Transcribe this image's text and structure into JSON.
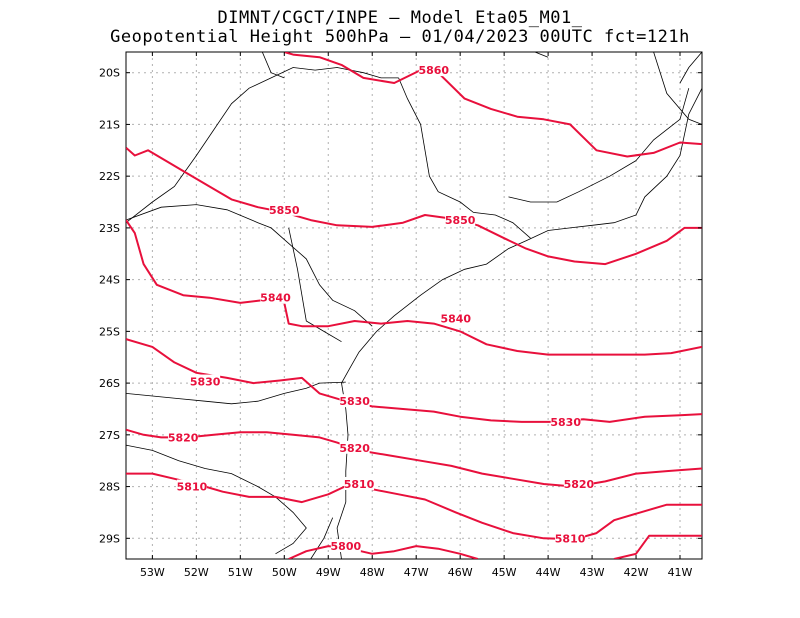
{
  "title": {
    "line1": "DIMNT/CGCT/INPE –  Model Eta05_M01_",
    "line2": "Geopotential Height 500hPa –  01/04/2023 00UTC fct=121h"
  },
  "map": {
    "lon_range": [
      -53.6,
      -40.5
    ],
    "lat_range": [
      -29.4,
      -19.6
    ],
    "lat_ticks": [
      {
        "value": -20,
        "label": "20S"
      },
      {
        "value": -21,
        "label": "21S"
      },
      {
        "value": -22,
        "label": "22S"
      },
      {
        "value": -23,
        "label": "23S"
      },
      {
        "value": -24,
        "label": "24S"
      },
      {
        "value": -25,
        "label": "25S"
      },
      {
        "value": -26,
        "label": "26S"
      },
      {
        "value": -27,
        "label": "27S"
      },
      {
        "value": -28,
        "label": "28S"
      },
      {
        "value": -29,
        "label": "29S"
      }
    ],
    "lon_ticks": [
      {
        "value": -53,
        "label": "53W"
      },
      {
        "value": -52,
        "label": "52W"
      },
      {
        "value": -51,
        "label": "51W"
      },
      {
        "value": -50,
        "label": "50W"
      },
      {
        "value": -49,
        "label": "49W"
      },
      {
        "value": -48,
        "label": "48W"
      },
      {
        "value": -47,
        "label": "47W"
      },
      {
        "value": -46,
        "label": "46W"
      },
      {
        "value": -45,
        "label": "45W"
      },
      {
        "value": -44,
        "label": "44W"
      },
      {
        "value": -43,
        "label": "43W"
      },
      {
        "value": -42,
        "label": "42W"
      },
      {
        "value": -41,
        "label": "41W"
      }
    ],
    "colors": {
      "contour": "#e8103c",
      "border": "#000000",
      "grid": "#b0b0b0"
    },
    "contours": [
      {
        "level": 5860,
        "label": "5860",
        "label_at": [
          -46.6,
          -19.95
        ],
        "points": [
          [
            -50.0,
            -19.6
          ],
          [
            -49.8,
            -19.65
          ],
          [
            -49.2,
            -19.7
          ],
          [
            -48.7,
            -19.85
          ],
          [
            -48.2,
            -20.1
          ],
          [
            -47.5,
            -20.2
          ],
          [
            -46.9,
            -19.95
          ],
          [
            -46.5,
            -20.0
          ],
          [
            -45.9,
            -20.5
          ],
          [
            -45.3,
            -20.7
          ],
          [
            -44.7,
            -20.85
          ],
          [
            -44.1,
            -20.9
          ],
          [
            -43.5,
            -21.0
          ],
          [
            -42.9,
            -21.5
          ],
          [
            -42.2,
            -21.62
          ],
          [
            -41.6,
            -21.55
          ],
          [
            -41.0,
            -21.35
          ],
          [
            -40.5,
            -21.38
          ]
        ]
      },
      {
        "level": 5850,
        "label": "5850",
        "label_at": [
          -50.0,
          -22.65
        ],
        "points": [
          [
            -53.6,
            -21.45
          ],
          [
            -53.4,
            -21.6
          ],
          [
            -53.1,
            -21.5
          ],
          [
            -52.7,
            -21.7
          ],
          [
            -52.2,
            -21.95
          ],
          [
            -51.7,
            -22.2
          ],
          [
            -51.2,
            -22.45
          ],
          [
            -50.6,
            -22.6
          ],
          [
            -50.0,
            -22.7
          ],
          [
            -49.4,
            -22.85
          ],
          [
            -48.8,
            -22.95
          ],
          [
            -48.0,
            -22.98
          ],
          [
            -47.3,
            -22.9
          ],
          [
            -46.8,
            -22.75
          ],
          [
            -46.2,
            -22.82
          ],
          [
            -45.6,
            -22.95
          ],
          [
            -45.0,
            -23.2
          ],
          [
            -44.5,
            -23.4
          ],
          [
            -44.0,
            -23.55
          ],
          [
            -43.4,
            -23.65
          ],
          [
            -42.7,
            -23.7
          ],
          [
            -42.0,
            -23.5
          ],
          [
            -41.3,
            -23.25
          ],
          [
            -40.9,
            -23.0
          ],
          [
            -40.5,
            -23.0
          ]
        ]
      },
      {
        "level": 5840,
        "label": "5840",
        "label_at": [
          -50.2,
          -24.35
        ],
        "points": [
          [
            -53.6,
            -22.85
          ],
          [
            -53.4,
            -23.1
          ],
          [
            -53.2,
            -23.7
          ],
          [
            -52.9,
            -24.1
          ],
          [
            -52.3,
            -24.3
          ],
          [
            -51.7,
            -24.35
          ],
          [
            -51.0,
            -24.45
          ],
          [
            -50.5,
            -24.4
          ],
          [
            -50.0,
            -24.45
          ],
          [
            -49.9,
            -24.85
          ],
          [
            -49.6,
            -24.9
          ],
          [
            -49.0,
            -24.9
          ],
          [
            -48.4,
            -24.8
          ],
          [
            -47.8,
            -24.85
          ],
          [
            -47.2,
            -24.8
          ],
          [
            -46.6,
            -24.85
          ],
          [
            -46.0,
            -25.0
          ],
          [
            -45.4,
            -25.25
          ],
          [
            -44.7,
            -25.38
          ],
          [
            -44.0,
            -25.45
          ],
          [
            -43.3,
            -25.45
          ],
          [
            -42.5,
            -25.45
          ],
          [
            -41.8,
            -25.45
          ],
          [
            -41.2,
            -25.42
          ],
          [
            -40.5,
            -25.3
          ]
        ]
      },
      {
        "level": 5830,
        "label": "5830",
        "label_at": [
          -51.8,
          -25.97
        ],
        "points": [
          [
            -53.6,
            -25.15
          ],
          [
            -53.0,
            -25.3
          ],
          [
            -52.5,
            -25.6
          ],
          [
            -52.0,
            -25.8
          ],
          [
            -51.3,
            -25.9
          ],
          [
            -50.7,
            -26.0
          ],
          [
            -50.1,
            -25.95
          ],
          [
            -49.6,
            -25.9
          ],
          [
            -49.2,
            -26.2
          ],
          [
            -48.6,
            -26.35
          ],
          [
            -48.0,
            -26.45
          ],
          [
            -47.3,
            -26.5
          ],
          [
            -46.6,
            -26.55
          ],
          [
            -46.0,
            -26.65
          ],
          [
            -45.3,
            -26.72
          ],
          [
            -44.6,
            -26.75
          ],
          [
            -43.9,
            -26.75
          ],
          [
            -43.2,
            -26.7
          ],
          [
            -42.6,
            -26.75
          ],
          [
            -41.8,
            -26.65
          ],
          [
            -41.0,
            -26.62
          ],
          [
            -40.5,
            -26.6
          ]
        ]
      },
      {
        "level": 5820,
        "label": "5820",
        "label_at": [
          -52.3,
          -27.05
        ],
        "points": [
          [
            -53.6,
            -26.9
          ],
          [
            -53.2,
            -27.0
          ],
          [
            -52.8,
            -27.05
          ],
          [
            -52.2,
            -27.05
          ],
          [
            -51.6,
            -27.0
          ],
          [
            -51.0,
            -26.95
          ],
          [
            -50.4,
            -26.95
          ],
          [
            -49.8,
            -27.0
          ],
          [
            -49.2,
            -27.05
          ],
          [
            -48.8,
            -27.15
          ],
          [
            -48.3,
            -27.3
          ],
          [
            -47.6,
            -27.4
          ],
          [
            -46.9,
            -27.5
          ],
          [
            -46.2,
            -27.6
          ],
          [
            -45.5,
            -27.75
          ],
          [
            -44.8,
            -27.85
          ],
          [
            -44.1,
            -27.95
          ],
          [
            -43.4,
            -28.0
          ],
          [
            -42.7,
            -27.9
          ],
          [
            -42.0,
            -27.75
          ],
          [
            -41.3,
            -27.7
          ],
          [
            -40.5,
            -27.65
          ]
        ]
      },
      {
        "level": 5810,
        "label": "5810",
        "label_at": [
          -52.1,
          -28.0
        ],
        "points": [
          [
            -53.6,
            -27.75
          ],
          [
            -53.0,
            -27.75
          ],
          [
            -52.5,
            -27.85
          ],
          [
            -52.0,
            -27.95
          ],
          [
            -51.4,
            -28.1
          ],
          [
            -50.8,
            -28.2
          ],
          [
            -50.2,
            -28.2
          ],
          [
            -49.6,
            -28.3
          ],
          [
            -49.0,
            -28.15
          ],
          [
            -48.5,
            -27.95
          ],
          [
            -48.0,
            -28.05
          ],
          [
            -47.4,
            -28.15
          ],
          [
            -46.8,
            -28.25
          ],
          [
            -46.1,
            -28.5
          ],
          [
            -45.5,
            -28.7
          ],
          [
            -44.8,
            -28.9
          ],
          [
            -44.1,
            -29.0
          ],
          [
            -43.4,
            -29.02
          ],
          [
            -42.9,
            -28.9
          ],
          [
            -42.5,
            -28.65
          ],
          [
            -41.9,
            -28.5
          ],
          [
            -41.3,
            -28.35
          ],
          [
            -40.5,
            -28.35
          ]
        ]
      },
      {
        "level": 5800,
        "label": "5800",
        "label_at": [
          -48.6,
          -29.15
        ],
        "points": [
          [
            -49.9,
            -29.4
          ],
          [
            -49.5,
            -29.25
          ],
          [
            -49.0,
            -29.15
          ],
          [
            -48.5,
            -29.2
          ],
          [
            -48.0,
            -29.3
          ],
          [
            -47.5,
            -29.25
          ],
          [
            -47.0,
            -29.15
          ],
          [
            -46.5,
            -29.2
          ],
          [
            -46.0,
            -29.3
          ],
          [
            -45.6,
            -29.4
          ]
        ]
      },
      {
        "level": 5800,
        "label": "",
        "label_at": null,
        "points": [
          [
            -42.5,
            -29.4
          ],
          [
            -42.0,
            -29.3
          ],
          [
            -41.7,
            -28.95
          ],
          [
            -41.3,
            -28.95
          ],
          [
            -40.5,
            -28.95
          ]
        ]
      }
    ],
    "contour_labels_inline": [
      {
        "label": "5850",
        "at": [
          -46.0,
          -22.85
        ]
      },
      {
        "label": "5840",
        "at": [
          -46.1,
          -24.75
        ]
      },
      {
        "label": "5830",
        "at": [
          -48.4,
          -26.35
        ]
      },
      {
        "label": "5830",
        "at": [
          -43.6,
          -26.75
        ]
      },
      {
        "label": "5820",
        "at": [
          -48.4,
          -27.25
        ]
      },
      {
        "label": "5820",
        "at": [
          -43.3,
          -27.95
        ]
      },
      {
        "label": "5810",
        "at": [
          -48.3,
          -27.95
        ]
      },
      {
        "label": "5810",
        "at": [
          -43.5,
          -29.0
        ]
      }
    ],
    "borders": [
      [
        [
          -53.6,
          -22.9
        ],
        [
          -53.0,
          -22.5
        ],
        [
          -52.5,
          -22.2
        ],
        [
          -52.0,
          -21.6
        ],
        [
          -51.6,
          -21.1
        ],
        [
          -51.2,
          -20.6
        ],
        [
          -50.8,
          -20.3
        ],
        [
          -50.3,
          -20.1
        ],
        [
          -49.8,
          -19.9
        ],
        [
          -49.3,
          -19.95
        ],
        [
          -48.8,
          -19.9
        ],
        [
          -48.2,
          -20.0
        ],
        [
          -47.8,
          -20.1
        ],
        [
          -47.4,
          -20.1
        ]
      ],
      [
        [
          -47.4,
          -20.1
        ],
        [
          -47.2,
          -20.5
        ],
        [
          -46.9,
          -21.0
        ],
        [
          -46.8,
          -21.5
        ],
        [
          -46.7,
          -22.0
        ],
        [
          -46.5,
          -22.3
        ],
        [
          -46.0,
          -22.5
        ],
        [
          -45.7,
          -22.7
        ],
        [
          -45.2,
          -22.75
        ],
        [
          -44.8,
          -22.9
        ],
        [
          -44.4,
          -23.2
        ]
      ],
      [
        [
          -44.9,
          -22.4
        ],
        [
          -44.4,
          -22.5
        ],
        [
          -43.8,
          -22.5
        ],
        [
          -43.3,
          -22.3
        ],
        [
          -42.6,
          -22.0
        ],
        [
          -42.0,
          -21.7
        ],
        [
          -41.6,
          -21.3
        ],
        [
          -41.0,
          -20.9
        ],
        [
          -40.8,
          -20.3
        ]
      ],
      [
        [
          -50.5,
          -19.6
        ],
        [
          -50.3,
          -20.0
        ],
        [
          -50.0,
          -20.1
        ]
      ],
      [
        [
          -44.3,
          -19.6
        ],
        [
          -44.0,
          -19.7
        ]
      ],
      [
        [
          -41.6,
          -19.6
        ],
        [
          -41.3,
          -20.4
        ],
        [
          -40.8,
          -20.9
        ],
        [
          -40.5,
          -21.0
        ]
      ],
      [
        [
          -40.5,
          -19.6
        ],
        [
          -40.8,
          -19.9
        ],
        [
          -41.0,
          -20.2
        ]
      ],
      [
        [
          -53.6,
          -22.85
        ],
        [
          -52.8,
          -22.6
        ],
        [
          -52.0,
          -22.55
        ],
        [
          -51.3,
          -22.65
        ],
        [
          -50.6,
          -22.9
        ],
        [
          -50.3,
          -23.0
        ],
        [
          -49.9,
          -23.3
        ],
        [
          -49.5,
          -23.6
        ],
        [
          -49.2,
          -24.1
        ],
        [
          -48.9,
          -24.4
        ],
        [
          -48.4,
          -24.6
        ],
        [
          -48.0,
          -24.9
        ]
      ],
      [
        [
          -49.9,
          -23.0
        ],
        [
          -49.7,
          -23.8
        ],
        [
          -49.6,
          -24.3
        ],
        [
          -49.5,
          -24.8
        ],
        [
          -49.1,
          -25.0
        ],
        [
          -48.7,
          -25.2
        ]
      ],
      [
        [
          -53.6,
          -26.2
        ],
        [
          -53.0,
          -26.25
        ],
        [
          -52.4,
          -26.3
        ],
        [
          -51.8,
          -26.35
        ],
        [
          -51.2,
          -26.4
        ],
        [
          -50.6,
          -26.35
        ],
        [
          -50.0,
          -26.2
        ],
        [
          -49.5,
          -26.1
        ],
        [
          -49.2,
          -26.0
        ],
        [
          -48.6,
          -25.98
        ]
      ],
      [
        [
          -53.6,
          -27.2
        ],
        [
          -53.0,
          -27.3
        ],
        [
          -52.4,
          -27.5
        ],
        [
          -51.8,
          -27.65
        ],
        [
          -51.2,
          -27.75
        ],
        [
          -50.6,
          -28.0
        ],
        [
          -50.2,
          -28.2
        ],
        [
          -49.8,
          -28.5
        ],
        [
          -49.5,
          -28.8
        ],
        [
          -49.8,
          -29.1
        ],
        [
          -50.2,
          -29.3
        ]
      ],
      [
        [
          -48.7,
          -29.4
        ],
        [
          -48.8,
          -28.8
        ],
        [
          -48.6,
          -28.3
        ],
        [
          -48.6,
          -27.7
        ],
        [
          -48.55,
          -27.0
        ],
        [
          -48.6,
          -26.5
        ],
        [
          -48.7,
          -26.0
        ],
        [
          -48.5,
          -25.7
        ],
        [
          -48.3,
          -25.4
        ],
        [
          -47.9,
          -25.0
        ],
        [
          -47.5,
          -24.7
        ],
        [
          -46.9,
          -24.3
        ],
        [
          -46.4,
          -24.0
        ],
        [
          -45.9,
          -23.8
        ],
        [
          -45.4,
          -23.7
        ],
        [
          -44.9,
          -23.4
        ],
        [
          -44.5,
          -23.25
        ],
        [
          -44.0,
          -23.05
        ],
        [
          -43.5,
          -23.0
        ],
        [
          -43.0,
          -22.95
        ],
        [
          -42.5,
          -22.9
        ],
        [
          -42.0,
          -22.75
        ],
        [
          -41.8,
          -22.4
        ],
        [
          -41.3,
          -22.0
        ],
        [
          -41.0,
          -21.6
        ],
        [
          -40.9,
          -21.2
        ],
        [
          -40.8,
          -20.8
        ],
        [
          -40.5,
          -20.3
        ]
      ],
      [
        [
          -49.4,
          -29.4
        ],
        [
          -49.1,
          -29.0
        ],
        [
          -48.9,
          -28.6
        ]
      ]
    ]
  }
}
